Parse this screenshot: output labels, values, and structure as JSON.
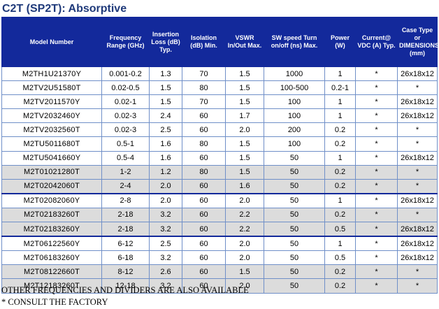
{
  "title": "C2T (SP2T): Absorptive",
  "headers": {
    "model": "Model Number",
    "freq": "Frequency Range (GHz)",
    "loss": "Insertion Loss (dB) Typ.",
    "iso": "Isolation (dB) Min.",
    "vswr": "VSWR In/Out Max.",
    "speed": "SW speed Turn on/off (ns) Max.",
    "power": "Power (W)",
    "current": "Current@ VDC (A) Typ.",
    "case": "Case Type or DIMENSIONS (mm)"
  },
  "rows": [
    {
      "model": "M2TH1U21370Y",
      "freq": "0.001-0.2",
      "loss": "1.3",
      "iso": "70",
      "vswr": "1.5",
      "speed": "1000",
      "power": "1",
      "current": "*",
      "case": "26x18x12"
    },
    {
      "model": "M2TV2U51580T",
      "freq": "0.02-0.5",
      "loss": "1.5",
      "iso": "80",
      "vswr": "1.5",
      "speed": "100-500",
      "power": "0.2-1",
      "current": "*",
      "case": "*"
    },
    {
      "model": "M2TV2011570Y",
      "freq": "0.02-1",
      "loss": "1.5",
      "iso": "70",
      "vswr": "1.5",
      "speed": "100",
      "power": "1",
      "current": "*",
      "case": "26x18x12"
    },
    {
      "model": "M2TV2032460Y",
      "freq": "0.02-3",
      "loss": "2.4",
      "iso": "60",
      "vswr": "1.7",
      "speed": "100",
      "power": "1",
      "current": "*",
      "case": "26x18x12"
    },
    {
      "model": "M2TV2032560T",
      "freq": "0.02-3",
      "loss": "2.5",
      "iso": "60",
      "vswr": "2.0",
      "speed": "200",
      "power": "0.2",
      "current": "*",
      "case": "*"
    },
    {
      "model": "M2TU5011680T",
      "freq": "0.5-1",
      "loss": "1.6",
      "iso": "80",
      "vswr": "1.5",
      "speed": "100",
      "power": "0.2",
      "current": "*",
      "case": "*"
    },
    {
      "model": "M2TU5041660Y",
      "freq": "0.5-4",
      "loss": "1.6",
      "iso": "60",
      "vswr": "1.5",
      "speed": "50",
      "power": "1",
      "current": "*",
      "case": "26x18x12"
    },
    {
      "model": "M2T01021280T",
      "freq": "1-2",
      "loss": "1.2",
      "iso": "80",
      "vswr": "1.5",
      "speed": "50",
      "power": "0.2",
      "current": "*",
      "case": "*"
    },
    {
      "model": "M2T02042060T",
      "freq": "2-4",
      "loss": "2.0",
      "iso": "60",
      "vswr": "1.6",
      "speed": "50",
      "power": "0.2",
      "current": "*",
      "case": "*"
    },
    {
      "model": "M2T02082060Y",
      "freq": "2-8",
      "loss": "2.0",
      "iso": "60",
      "vswr": "2.0",
      "speed": "50",
      "power": "1",
      "current": "*",
      "case": "26x18x12"
    },
    {
      "model": "M2T02183260T",
      "freq": "2-18",
      "loss": "3.2",
      "iso": "60",
      "vswr": "2.2",
      "speed": "50",
      "power": "0.2",
      "current": "*",
      "case": "*"
    },
    {
      "model": "M2T02183260Y",
      "freq": "2-18",
      "loss": "3.2",
      "iso": "60",
      "vswr": "2.2",
      "speed": "50",
      "power": "0.5",
      "current": "*",
      "case": "26x18x12"
    },
    {
      "model": "M2T06122560Y",
      "freq": "6-12",
      "loss": "2.5",
      "iso": "60",
      "vswr": "2.0",
      "speed": "50",
      "power": "1",
      "current": "*",
      "case": "26x18x12"
    },
    {
      "model": "M2T06183260Y",
      "freq": "6-18",
      "loss": "3.2",
      "iso": "60",
      "vswr": "2.0",
      "speed": "50",
      "power": "0.5",
      "current": "*",
      "case": "26x18x12"
    },
    {
      "model": "M2T08122660T",
      "freq": "8-12",
      "loss": "2.6",
      "iso": "60",
      "vswr": "1.5",
      "speed": "50",
      "power": "0.2",
      "current": "*",
      "case": "*"
    },
    {
      "model": "M2T12183260T",
      "freq": "12-18",
      "loss": "3.2",
      "iso": "60",
      "vswr": "2.0",
      "speed": "50",
      "power": "0.2",
      "current": "*",
      "case": "*"
    }
  ],
  "footer": {
    "line1": "OTHER FREQUENCIES AND DIVIDERS ARE ALSO AVAILABLE",
    "line2": "* CONSULT THE FACTORY"
  }
}
